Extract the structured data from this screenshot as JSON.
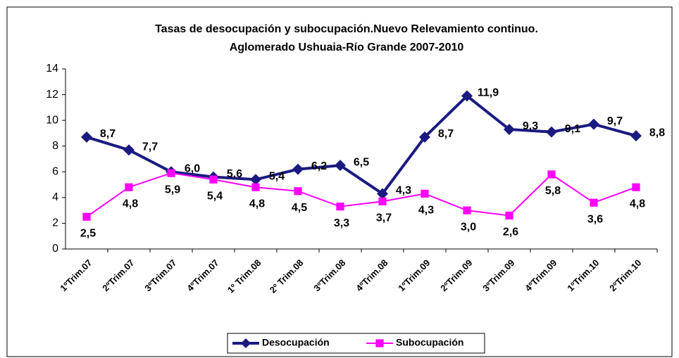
{
  "chart_data": {
    "type": "line",
    "title": "Tasas de desocupación y subocupación.Nuevo Relevamiento continuo.",
    "subtitle": "Aglomerado Ushuaia-Río Grande 2007-2010",
    "categories": [
      "1ºTrim.07",
      "2ºTrim.07",
      "3ºTrim.07",
      "4ºTrim.07",
      "1º Trim.08",
      "2º Trim.08",
      "3ºTrim.08",
      "4ºTrim.08",
      "1ºTrim.09",
      "2ºTrim.09",
      "3ºTrim.09",
      "4ºTrim.09",
      "1ºTrim.10",
      "2ºTrim.10"
    ],
    "series": [
      {
        "name": "Desocupación",
        "color": "#1a1a80",
        "marker": "diamond",
        "values": [
          8.7,
          7.7,
          6.0,
          5.6,
          5.4,
          6.2,
          6.5,
          4.3,
          8.7,
          11.9,
          9.3,
          9.1,
          9.7,
          8.8
        ],
        "value_labels": [
          "8,7",
          "7,7",
          "6,0",
          "5,6",
          "5,4",
          "6,2",
          "6,5",
          "4,3",
          "8,7",
          "11,9",
          "9,3",
          "9,1",
          "9,7",
          "8,8"
        ]
      },
      {
        "name": "Subocupación",
        "color": "#ff00ff",
        "marker": "square",
        "values": [
          2.5,
          4.8,
          5.9,
          5.4,
          4.8,
          4.5,
          3.3,
          3.7,
          4.3,
          3.0,
          2.6,
          5.8,
          3.6,
          4.8
        ],
        "value_labels": [
          "2,5",
          "4,8",
          "5,9",
          "5,4",
          "4,8",
          "4,5",
          "3,3",
          "3,7",
          "4,3",
          "3,0",
          "2,6",
          "5,8",
          "3,6",
          "4,8"
        ]
      }
    ],
    "ylim": [
      0,
      14
    ],
    "yticks": [
      0,
      2,
      4,
      6,
      8,
      10,
      12,
      14
    ],
    "grid": false,
    "legend": "bottom"
  }
}
